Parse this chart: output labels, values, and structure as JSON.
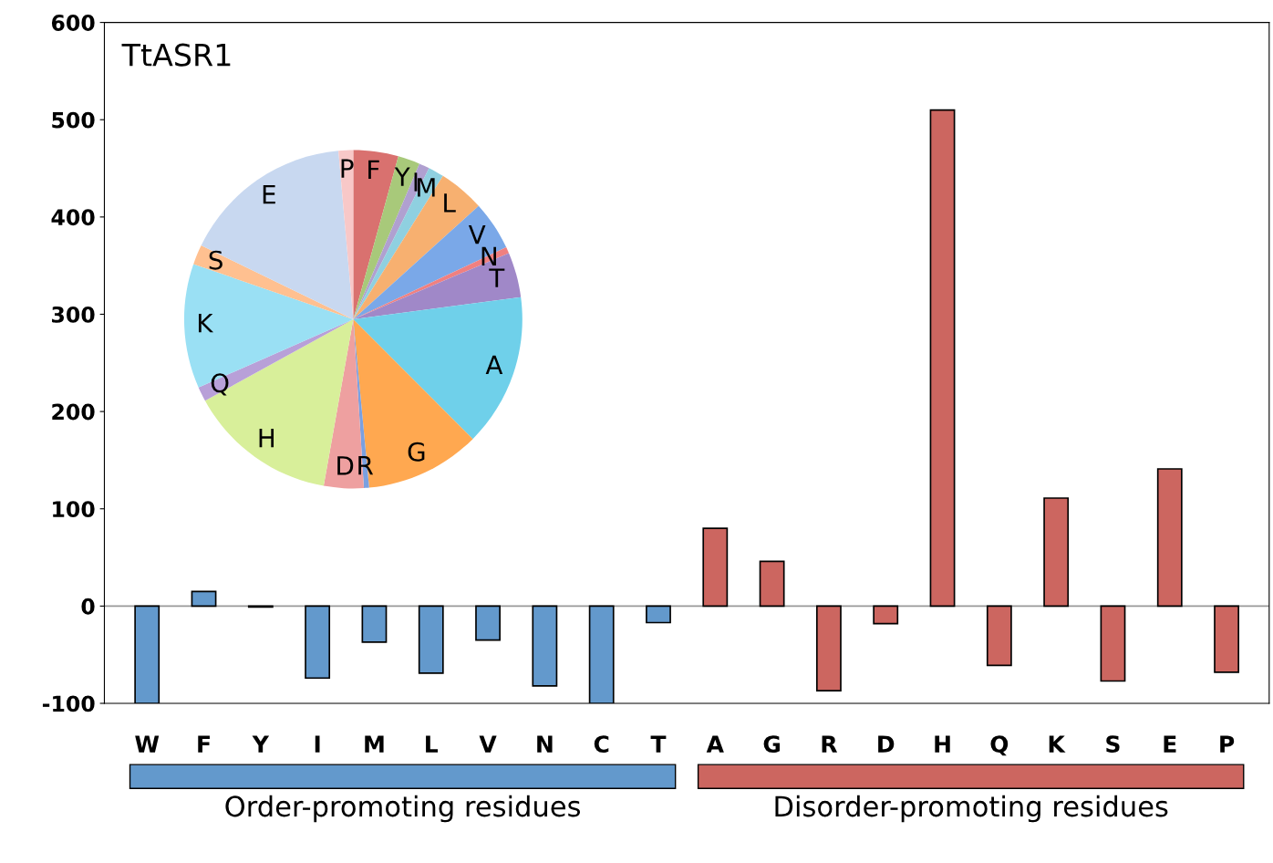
{
  "chart_data": [
    {
      "type": "bar",
      "title": "TtASR1",
      "categories": [
        "W",
        "F",
        "Y",
        "I",
        "M",
        "L",
        "V",
        "N",
        "C",
        "T",
        "A",
        "G",
        "R",
        "D",
        "H",
        "Q",
        "K",
        "S",
        "E",
        "P"
      ],
      "values": [
        -100,
        15,
        -1,
        -74,
        -37,
        -69,
        -35,
        -82,
        -100,
        -17,
        80,
        46,
        -87,
        -18,
        510,
        -61,
        111,
        -77,
        141,
        -68
      ],
      "colors": [
        "#6399cc",
        "#6399cc",
        "#6399cc",
        "#6399cc",
        "#6399cc",
        "#6399cc",
        "#6399cc",
        "#6399cc",
        "#6399cc",
        "#6399cc",
        "#cc6660",
        "#cc6660",
        "#cc6660",
        "#cc6660",
        "#cc6660",
        "#cc6660",
        "#cc6660",
        "#cc6660",
        "#cc6660",
        "#cc6660"
      ],
      "ylim": [
        -100,
        600
      ],
      "yticks": [
        -100,
        0,
        100,
        200,
        300,
        400,
        500,
        600
      ],
      "annotations": [
        "Order-promoting residues",
        "Disorder-promoting residues"
      ]
    },
    {
      "type": "pie",
      "categories": [
        "F",
        "Y",
        "I",
        "M",
        "L",
        "V",
        "N",
        "T",
        "A",
        "G",
        "R",
        "D",
        "H",
        "Q",
        "K",
        "S",
        "E",
        "P"
      ],
      "values": [
        4.3,
        2.1,
        1.0,
        1.5,
        4.4,
        4.7,
        0.6,
        4.3,
        14.6,
        11.0,
        0.5,
        3.8,
        14.2,
        1.4,
        11.9,
        1.9,
        16.4,
        1.4
      ],
      "colors": [
        "#d9716f",
        "#a8c97a",
        "#b0a0d0",
        "#8fd0e0",
        "#f7b070",
        "#7aa8e8",
        "#f08080",
        "#a088c8",
        "#6fd0ea",
        "#ffa850",
        "#7aa0e0",
        "#eea0a0",
        "#d8ef9a",
        "#b8a0d8",
        "#9ae0f4",
        "#ffc090",
        "#c8d8f0",
        "#f8c8c8"
      ]
    }
  ]
}
